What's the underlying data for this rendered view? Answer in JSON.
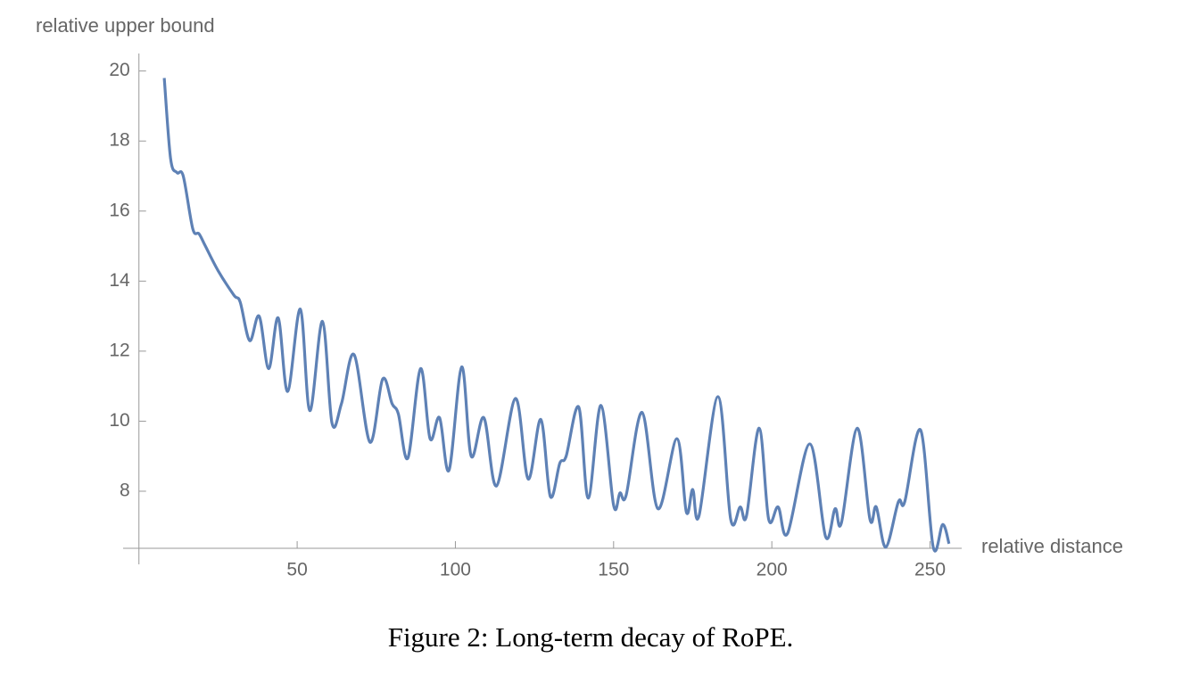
{
  "chart_data": {
    "type": "line",
    "caption": "Figure 2: Long-term decay of RoPE.",
    "y_label": "relative upper bound",
    "x_label": "relative distance",
    "xlim": [
      -5,
      260
    ],
    "ylim": [
      6.37,
      20.5
    ],
    "xticks": [
      50,
      100,
      150,
      200,
      250
    ],
    "yticks": [
      8,
      10,
      12,
      14,
      16,
      18,
      20
    ],
    "series": [
      {
        "color": "#5e81b5",
        "x": [
          8,
          10,
          12,
          14,
          17,
          19,
          21,
          25,
          30,
          32,
          35,
          38,
          41,
          44,
          47,
          51,
          54,
          58,
          61,
          64,
          68,
          73,
          77,
          80,
          82,
          85,
          89,
          92,
          95,
          98,
          102,
          105,
          109,
          113,
          119,
          123,
          127,
          130,
          133,
          135,
          139,
          142,
          146,
          150,
          152,
          154,
          159,
          164,
          170,
          173,
          175,
          177,
          183,
          187,
          190,
          192,
          196,
          199,
          202,
          205,
          212,
          217,
          220,
          222,
          227,
          231,
          233,
          236,
          240,
          242,
          247,
          251,
          254,
          256
        ],
        "values": [
          19.8,
          17.5,
          17.1,
          17.0,
          15.5,
          15.35,
          15.0,
          14.3,
          13.6,
          13.4,
          12.3,
          13.0,
          11.5,
          12.95,
          10.85,
          13.2,
          10.3,
          12.85,
          9.95,
          10.5,
          11.9,
          9.4,
          11.2,
          10.5,
          10.2,
          8.95,
          11.5,
          9.5,
          10.1,
          8.6,
          11.55,
          9.0,
          10.1,
          8.15,
          10.65,
          8.35,
          10.05,
          7.85,
          8.8,
          9.0,
          10.4,
          7.8,
          10.45,
          7.6,
          7.95,
          7.9,
          10.25,
          7.5,
          9.5,
          7.4,
          8.05,
          7.3,
          10.7,
          7.2,
          7.55,
          7.3,
          9.8,
          7.2,
          7.55,
          6.8,
          9.35,
          6.7,
          7.5,
          7.1,
          9.8,
          7.2,
          7.55,
          6.4,
          7.7,
          7.7,
          9.75,
          6.4,
          7.05,
          6.5
        ]
      }
    ]
  }
}
